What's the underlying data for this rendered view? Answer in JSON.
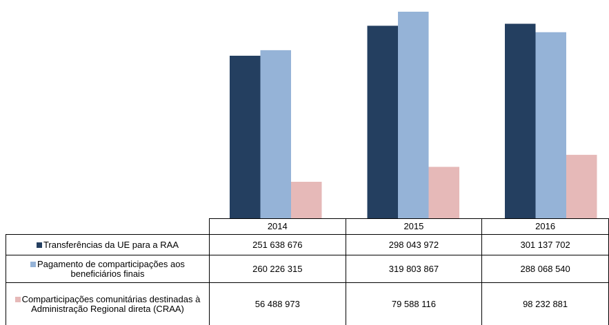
{
  "chart_data": {
    "type": "bar",
    "categories": [
      "2014",
      "2015",
      "2016"
    ],
    "series": [
      {
        "name": "Transferências da UE para a RAA",
        "color": "#243f60",
        "values": [
          251638676,
          298043972,
          301137702
        ],
        "value_labels": [
          "251 638 676",
          "298 043 972",
          "301 137 702"
        ]
      },
      {
        "name": "Pagamento de comparticipações aos beneficiários finais",
        "color": "#95b3d7",
        "values": [
          260226315,
          319803867,
          288068540
        ],
        "value_labels": [
          "260 226 315",
          "319 803 867",
          "288 068 540"
        ]
      },
      {
        "name": "Comparticipações comunitárias destinadas à Administração Regional direta (CRAA)",
        "color": "#e6b9b8",
        "values": [
          56488973,
          79588116,
          98232881
        ],
        "value_labels": [
          "56 488 973",
          "79 588 116",
          "98 232 881"
        ]
      }
    ]
  }
}
